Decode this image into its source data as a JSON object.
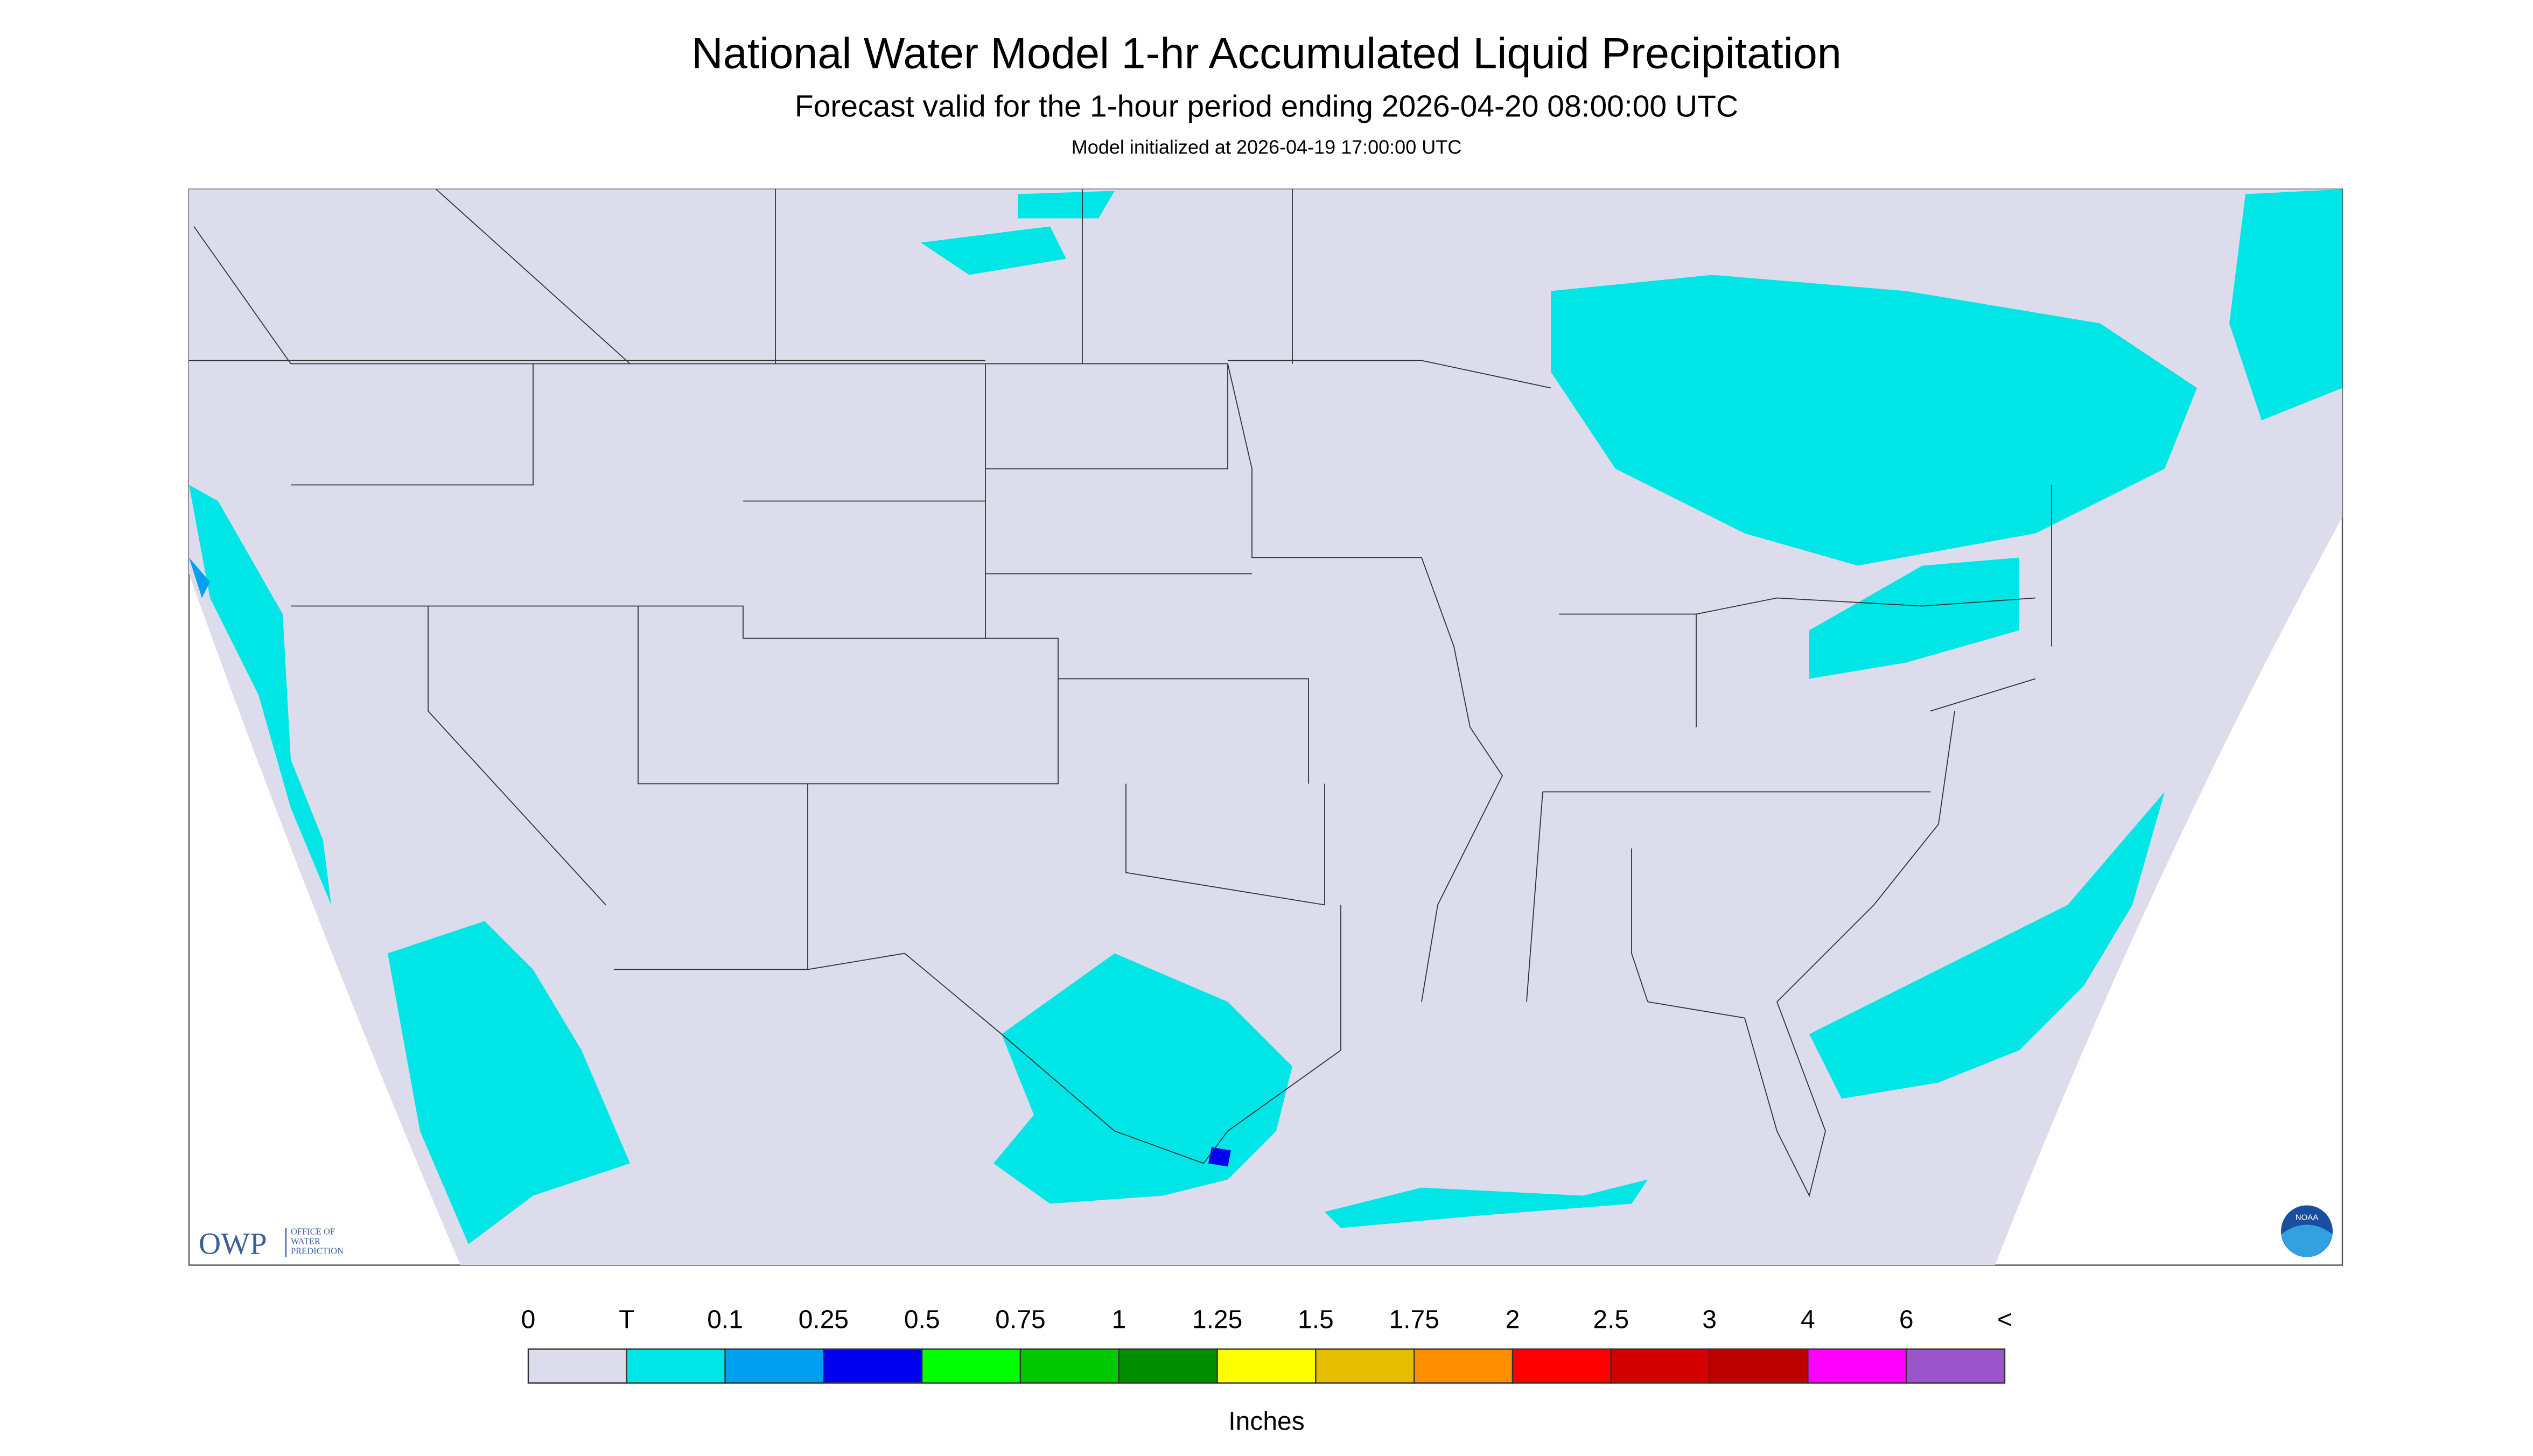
{
  "header": {
    "title": "National Water Model 1-hr Accumulated Liquid Precipitation",
    "subtitle": "Forecast valid for the 1-hour period ending 2026-04-20 08:00:00 UTC",
    "note": "Model initialized at 2026-04-19 17:00:00 UTC"
  },
  "legend": {
    "labels": [
      "0",
      "T",
      "0.1",
      "0.25",
      "0.5",
      "0.75",
      "1",
      "1.25",
      "1.5",
      "1.75",
      "2",
      "2.5",
      "3",
      "4",
      "6",
      "<"
    ],
    "colors": [
      "#dcdcec",
      "#00e6e6",
      "#009ff0",
      "#0000f0",
      "#00ff00",
      "#00c800",
      "#008e00",
      "#ffff00",
      "#e6be00",
      "#ff8e00",
      "#ff0000",
      "#d40000",
      "#bc0000",
      "#ff00ff",
      "#9955c9"
    ],
    "unit": "Inches"
  },
  "logo": {
    "owp": "OWP",
    "office": [
      "OFFICE OF",
      "WATER",
      "PREDICTION"
    ],
    "noaa": "NOAA"
  }
}
